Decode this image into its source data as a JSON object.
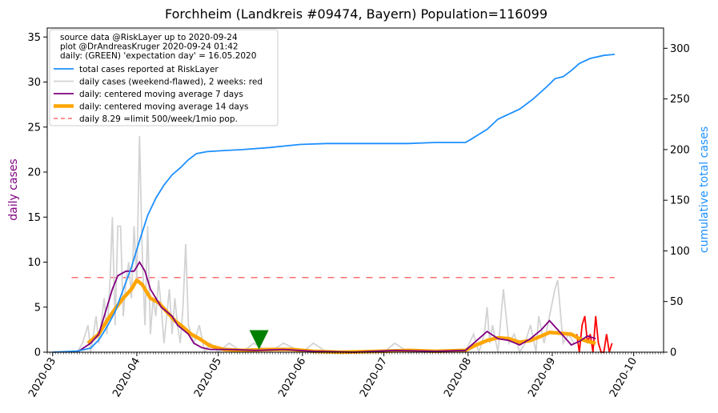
{
  "chart_data": {
    "type": "line",
    "title": "Forchheim (Landkreis #09474, Bayern) Population=116099",
    "ylabel_left": "daily cases",
    "ylabel_right": "cumulative total cases",
    "ylim_left": [
      0,
      36
    ],
    "ylim_right": [
      0,
      320
    ],
    "xlim": [
      "2020-02-28",
      "2020-10-12"
    ],
    "yticks_left": [
      0,
      5,
      10,
      15,
      20,
      25,
      30,
      35
    ],
    "yticks_right": [
      0,
      50,
      100,
      150,
      200,
      250,
      300
    ],
    "xticks": [
      "2020-03",
      "2020-04",
      "2020-05",
      "2020-06",
      "2020-07",
      "2020-08",
      "2020-09",
      "2020-10"
    ],
    "colors": {
      "total": "#1e90ff",
      "daily_raw": "#d3d3d3",
      "daily_recent": "#ff0000",
      "ma7": "#800080",
      "ma14": "#ffa500",
      "limit": "#ff6f6f",
      "marker": "#008000",
      "left_label": "#800080",
      "right_label": "#1e90ff"
    },
    "legend": {
      "placement": "top-left",
      "header": [
        "source data @RiskLayer up to 2020-09-24",
        "plot @DrAndreasKruger 2020-09-24 01:42",
        "daily: (GREEN) 'expectation day' = 16.05.2020"
      ],
      "entries": [
        "total cases reported at RiskLayer",
        "daily cases (weekend-flawed), 2 weeks: red",
        "daily: centered moving average 7 days",
        "daily: centered moving average 14 days",
        "daily 8.29 =limit 500/week/1mio pop."
      ]
    },
    "limit": {
      "value": 8.29,
      "x_start": "2020-03-08",
      "x_end": "2020-09-24"
    },
    "expectation_day": {
      "date": "2020-05-16",
      "y": 1.2
    },
    "series": {
      "total_cumulative": [
        [
          "2020-03-01",
          0
        ],
        [
          "2020-03-10",
          1
        ],
        [
          "2020-03-15",
          4
        ],
        [
          "2020-03-18",
          12
        ],
        [
          "2020-03-21",
          25
        ],
        [
          "2020-03-24",
          40
        ],
        [
          "2020-03-27",
          62
        ],
        [
          "2020-03-30",
          84
        ],
        [
          "2020-04-02",
          110
        ],
        [
          "2020-04-05",
          135
        ],
        [
          "2020-04-08",
          152
        ],
        [
          "2020-04-11",
          165
        ],
        [
          "2020-04-14",
          175
        ],
        [
          "2020-04-17",
          182
        ],
        [
          "2020-04-20",
          190
        ],
        [
          "2020-04-23",
          196
        ],
        [
          "2020-04-27",
          198
        ],
        [
          "2020-05-03",
          199
        ],
        [
          "2020-05-10",
          200
        ],
        [
          "2020-05-20",
          202
        ],
        [
          "2020-05-31",
          205
        ],
        [
          "2020-06-10",
          206
        ],
        [
          "2020-06-20",
          206
        ],
        [
          "2020-06-30",
          206
        ],
        [
          "2020-07-10",
          206
        ],
        [
          "2020-07-20",
          207
        ],
        [
          "2020-07-31",
          207
        ],
        [
          "2020-08-02",
          210
        ],
        [
          "2020-08-05",
          215
        ],
        [
          "2020-08-08",
          220
        ],
        [
          "2020-08-12",
          230
        ],
        [
          "2020-08-16",
          235
        ],
        [
          "2020-08-20",
          240
        ],
        [
          "2020-08-25",
          250
        ],
        [
          "2020-08-30",
          262
        ],
        [
          "2020-09-02",
          270
        ],
        [
          "2020-09-05",
          272
        ],
        [
          "2020-09-08",
          278
        ],
        [
          "2020-09-11",
          285
        ],
        [
          "2020-09-15",
          290
        ],
        [
          "2020-09-20",
          293
        ],
        [
          "2020-09-24",
          294
        ]
      ],
      "daily_raw": [
        [
          "2020-03-01",
          0
        ],
        [
          "2020-03-10",
          0
        ],
        [
          "2020-03-12",
          1
        ],
        [
          "2020-03-14",
          3
        ],
        [
          "2020-03-15",
          0
        ],
        [
          "2020-03-17",
          4
        ],
        [
          "2020-03-18",
          1
        ],
        [
          "2020-03-20",
          6
        ],
        [
          "2020-03-21",
          2
        ],
        [
          "2020-03-22",
          7
        ],
        [
          "2020-03-23",
          15
        ],
        [
          "2020-03-24",
          3
        ],
        [
          "2020-03-25",
          14
        ],
        [
          "2020-03-26",
          14
        ],
        [
          "2020-03-27",
          4
        ],
        [
          "2020-03-28",
          8
        ],
        [
          "2020-03-29",
          10
        ],
        [
          "2020-03-30",
          6
        ],
        [
          "2020-03-31",
          14
        ],
        [
          "2020-04-01",
          8
        ],
        [
          "2020-04-02",
          24
        ],
        [
          "2020-04-03",
          11
        ],
        [
          "2020-04-04",
          3
        ],
        [
          "2020-04-05",
          14
        ],
        [
          "2020-04-06",
          2
        ],
        [
          "2020-04-07",
          6
        ],
        [
          "2020-04-08",
          4
        ],
        [
          "2020-04-09",
          8
        ],
        [
          "2020-04-10",
          5
        ],
        [
          "2020-04-11",
          1
        ],
        [
          "2020-04-12",
          4
        ],
        [
          "2020-04-13",
          7
        ],
        [
          "2020-04-14",
          2
        ],
        [
          "2020-04-15",
          6
        ],
        [
          "2020-04-16",
          3
        ],
        [
          "2020-04-17",
          1
        ],
        [
          "2020-04-18",
          5
        ],
        [
          "2020-04-19",
          12
        ],
        [
          "2020-04-20",
          3
        ],
        [
          "2020-04-21",
          2
        ],
        [
          "2020-04-22",
          1
        ],
        [
          "2020-04-24",
          3
        ],
        [
          "2020-04-26",
          0
        ],
        [
          "2020-04-28",
          1
        ],
        [
          "2020-05-01",
          0
        ],
        [
          "2020-05-05",
          1
        ],
        [
          "2020-05-10",
          0
        ],
        [
          "2020-05-14",
          1
        ],
        [
          "2020-05-20",
          0
        ],
        [
          "2020-05-25",
          1
        ],
        [
          "2020-06-01",
          0
        ],
        [
          "2020-06-05",
          1
        ],
        [
          "2020-06-10",
          0
        ],
        [
          "2020-07-01",
          0
        ],
        [
          "2020-07-05",
          1
        ],
        [
          "2020-07-10",
          0
        ],
        [
          "2020-07-31",
          0
        ],
        [
          "2020-08-03",
          2
        ],
        [
          "2020-08-05",
          0
        ],
        [
          "2020-08-07",
          2
        ],
        [
          "2020-08-08",
          5
        ],
        [
          "2020-08-09",
          1
        ],
        [
          "2020-08-10",
          3
        ],
        [
          "2020-08-12",
          0
        ],
        [
          "2020-08-14",
          7
        ],
        [
          "2020-08-16",
          1
        ],
        [
          "2020-08-18",
          2
        ],
        [
          "2020-08-20",
          0
        ],
        [
          "2020-08-22",
          1
        ],
        [
          "2020-08-24",
          3
        ],
        [
          "2020-08-26",
          0
        ],
        [
          "2020-08-27",
          4
        ],
        [
          "2020-08-29",
          1
        ],
        [
          "2020-08-31",
          4
        ],
        [
          "2020-09-02",
          7
        ],
        [
          "2020-09-03",
          8
        ],
        [
          "2020-09-05",
          1
        ],
        [
          "2020-09-07",
          2
        ],
        [
          "2020-09-09",
          1
        ]
      ],
      "daily_recent": [
        [
          "2020-09-10",
          2
        ],
        [
          "2020-09-11",
          0
        ],
        [
          "2020-09-12",
          3
        ],
        [
          "2020-09-13",
          4
        ],
        [
          "2020-09-14",
          1
        ],
        [
          "2020-09-15",
          2
        ],
        [
          "2020-09-16",
          0
        ],
        [
          "2020-09-17",
          4
        ],
        [
          "2020-09-18",
          1
        ],
        [
          "2020-09-19",
          0
        ],
        [
          "2020-09-20",
          0
        ],
        [
          "2020-09-21",
          2
        ],
        [
          "2020-09-22",
          0
        ],
        [
          "2020-09-23",
          1
        ]
      ],
      "ma7": [
        [
          "2020-03-10",
          0
        ],
        [
          "2020-03-15",
          1
        ],
        [
          "2020-03-18",
          2
        ],
        [
          "2020-03-20",
          4
        ],
        [
          "2020-03-23",
          7
        ],
        [
          "2020-03-25",
          8.5
        ],
        [
          "2020-03-28",
          9
        ],
        [
          "2020-03-31",
          9
        ],
        [
          "2020-04-02",
          10
        ],
        [
          "2020-04-04",
          9
        ],
        [
          "2020-04-06",
          7
        ],
        [
          "2020-04-08",
          6
        ],
        [
          "2020-04-10",
          5
        ],
        [
          "2020-04-12",
          4.5
        ],
        [
          "2020-04-14",
          4
        ],
        [
          "2020-04-16",
          3
        ],
        [
          "2020-04-18",
          2.5
        ],
        [
          "2020-04-20",
          2
        ],
        [
          "2020-04-22",
          1
        ],
        [
          "2020-04-25",
          0.5
        ],
        [
          "2020-04-28",
          0.3
        ],
        [
          "2020-05-05",
          0.3
        ],
        [
          "2020-05-15",
          0.2
        ],
        [
          "2020-05-25",
          0.3
        ],
        [
          "2020-06-05",
          0.1
        ],
        [
          "2020-06-20",
          0
        ],
        [
          "2020-07-05",
          0.2
        ],
        [
          "2020-07-20",
          0.1
        ],
        [
          "2020-07-31",
          0.2
        ],
        [
          "2020-08-05",
          1.5
        ],
        [
          "2020-08-08",
          2.3
        ],
        [
          "2020-08-12",
          1.5
        ],
        [
          "2020-08-16",
          1.3
        ],
        [
          "2020-08-20",
          0.8
        ],
        [
          "2020-08-24",
          1.5
        ],
        [
          "2020-08-28",
          2.5
        ],
        [
          "2020-08-31",
          3.5
        ],
        [
          "2020-09-03",
          2.5
        ],
        [
          "2020-09-06",
          1.5
        ],
        [
          "2020-09-08",
          0.8
        ],
        [
          "2020-09-11",
          1.2
        ],
        [
          "2020-09-14",
          1.8
        ],
        [
          "2020-09-17",
          1.5
        ]
      ],
      "ma14": [
        [
          "2020-03-14",
          1
        ],
        [
          "2020-03-18",
          2
        ],
        [
          "2020-03-21",
          3.5
        ],
        [
          "2020-03-24",
          4.8
        ],
        [
          "2020-03-27",
          6
        ],
        [
          "2020-03-30",
          7
        ],
        [
          "2020-04-01",
          8
        ],
        [
          "2020-04-03",
          7.5
        ],
        [
          "2020-04-06",
          6
        ],
        [
          "2020-04-09",
          5.5
        ],
        [
          "2020-04-12",
          4.5
        ],
        [
          "2020-04-15",
          3.5
        ],
        [
          "2020-04-18",
          2.8
        ],
        [
          "2020-04-21",
          2
        ],
        [
          "2020-04-24",
          1.5
        ],
        [
          "2020-04-28",
          0.7
        ],
        [
          "2020-05-03",
          0.3
        ],
        [
          "2020-05-10",
          0.2
        ],
        [
          "2020-05-20",
          0.3
        ],
        [
          "2020-05-28",
          0.3
        ],
        [
          "2020-06-05",
          0.1
        ],
        [
          "2020-06-15",
          0
        ],
        [
          "2020-06-30",
          0.1
        ],
        [
          "2020-07-10",
          0.2
        ],
        [
          "2020-07-20",
          0.1
        ],
        [
          "2020-07-31",
          0.2
        ],
        [
          "2020-08-04",
          0.8
        ],
        [
          "2020-08-08",
          1.3
        ],
        [
          "2020-08-12",
          1.6
        ],
        [
          "2020-08-16",
          1.5
        ],
        [
          "2020-08-20",
          1.1
        ],
        [
          "2020-08-24",
          1.3
        ],
        [
          "2020-08-28",
          1.8
        ],
        [
          "2020-08-31",
          2.2
        ],
        [
          "2020-09-04",
          2.1
        ],
        [
          "2020-09-08",
          2
        ],
        [
          "2020-09-11",
          1.5
        ],
        [
          "2020-09-14",
          1.2
        ],
        [
          "2020-09-17",
          1
        ]
      ]
    }
  }
}
